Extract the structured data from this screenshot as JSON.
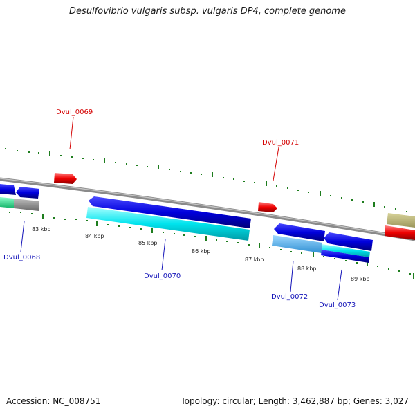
{
  "title": "Desulfovibrio vulgaris subsp. vulgaris DP4, complete genome",
  "footer": {
    "accession": "Accession: NC_008751",
    "summary": "Topology: circular; Length: 3,462,887 bp; Genes: 3,027"
  },
  "scale_labels": [
    "83 kbp",
    "84 kbp",
    "85 kbp",
    "86 kbp",
    "87 kbp",
    "88 kbp",
    "89 kbp"
  ],
  "gene_labels": {
    "dvul_0068": "Dvul_0068",
    "dvul_0069": "Dvul_0069",
    "dvul_0070": "Dvul_0070",
    "dvul_0071": "Dvul_0071",
    "dvul_0072": "Dvul_0072",
    "dvul_0073": "Dvul_0073"
  },
  "colors": {
    "backbone": "#8a8a8a",
    "forward_gene": "#ee0000",
    "reverse_cds": "#0000dd",
    "reverse_product": "#00e0e8",
    "tick": "#1e7d1e",
    "label_red": "#d40000",
    "label_blue": "#1212b8"
  }
}
